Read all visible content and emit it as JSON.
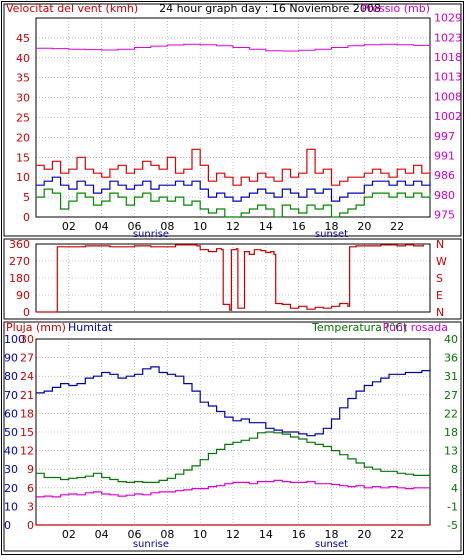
{
  "chart_data": [
    {
      "type": "line",
      "title": "24 hour graph day : 16 Noviembre 2008",
      "left_label": "Velocitat del vent (kmh)",
      "right_label": "Pressió (mb)",
      "left_ticks": [
        "0",
        "5",
        "10",
        "15",
        "20",
        "25",
        "30",
        "35",
        "40",
        "45"
      ],
      "right_ticks": [
        "975",
        "980",
        "986",
        "991",
        "997",
        "1002",
        "1008",
        "1013",
        "1018",
        "1023",
        "1029"
      ],
      "x_ticks": [
        "02",
        "04",
        "06",
        "08",
        "10",
        "12",
        "14",
        "16",
        "18",
        "20",
        "22"
      ],
      "markers": {
        "sunrise": "sunrise",
        "sunset": "sunset"
      },
      "x_range_hours": [
        0,
        24
      ],
      "left_range": [
        0,
        50
      ],
      "right_range": [
        975,
        1031
      ],
      "grid": true,
      "colors": {
        "gust": "#dd0000",
        "average": "#0000bb",
        "minimum": "#008800",
        "pressure": "#dd00dd",
        "axis_left": "#cc0000",
        "axis_right": "#cc00cc"
      },
      "series": [
        {
          "color_key": "gust",
          "hours": [
            0,
            0.5,
            1,
            1.5,
            2,
            2.5,
            3,
            3.5,
            4,
            4.5,
            5,
            5.5,
            6,
            6.5,
            7,
            7.5,
            8,
            8.5,
            9,
            9.5,
            10,
            10.5,
            11,
            11.5,
            12,
            12.5,
            13,
            13.5,
            14,
            14.5,
            15,
            15.5,
            16,
            16.5,
            17,
            17.5,
            18,
            18.5,
            19,
            19.5,
            20,
            20.5,
            21,
            21.5,
            22,
            22.5,
            23,
            23.5,
            24
          ],
          "values": [
            13,
            12,
            14,
            11,
            12,
            15,
            12,
            11,
            10,
            12,
            13,
            11,
            12,
            14,
            13,
            12,
            15,
            11,
            12,
            17,
            13,
            9,
            11,
            10,
            8,
            10,
            9,
            11,
            10,
            9,
            12,
            10,
            11,
            17,
            11,
            12,
            8,
            9,
            10,
            10,
            11,
            12,
            11,
            10,
            12,
            11,
            13,
            11,
            12
          ]
        },
        {
          "color_key": "average",
          "hours": [
            0,
            0.5,
            1,
            1.5,
            2,
            2.5,
            3,
            3.5,
            4,
            4.5,
            5,
            5.5,
            6,
            6.5,
            7,
            7.5,
            8,
            8.5,
            9,
            9.5,
            10,
            10.5,
            11,
            11.5,
            12,
            12.5,
            13,
            13.5,
            14,
            14.5,
            15,
            15.5,
            16,
            16.5,
            17,
            17.5,
            18,
            18.5,
            19,
            19.5,
            20,
            20.5,
            21,
            21.5,
            22,
            22.5,
            23,
            23.5,
            24
          ],
          "values": [
            8,
            9,
            10,
            8,
            7,
            9,
            8,
            6,
            7,
            9,
            8,
            7,
            8,
            9,
            7,
            8,
            8,
            9,
            8,
            9,
            7,
            5,
            6,
            5,
            4,
            5,
            6,
            7,
            6,
            5,
            7,
            6,
            5,
            7,
            6,
            7,
            4,
            5,
            6,
            6,
            8,
            9,
            9,
            8,
            9,
            8,
            9,
            8,
            9
          ]
        },
        {
          "color_key": "minimum",
          "hours": [
            0,
            0.5,
            1,
            1.5,
            2,
            2.5,
            3,
            3.5,
            4,
            4.5,
            5,
            5.5,
            6,
            6.5,
            7,
            7.5,
            8,
            8.5,
            9,
            9.5,
            10,
            10.5,
            11,
            11.5,
            12,
            12.5,
            13,
            13.5,
            14,
            14.5,
            15,
            15.5,
            16,
            16.5,
            17,
            17.5,
            18,
            18.5,
            19,
            19.5,
            20,
            20.5,
            21,
            21.5,
            22,
            22.5,
            23,
            23.5,
            24
          ],
          "values": [
            5,
            7,
            6,
            2,
            4,
            6,
            5,
            3,
            4,
            6,
            5,
            3,
            5,
            6,
            4,
            5,
            4,
            5,
            3,
            4,
            2,
            1,
            2,
            0,
            0,
            1,
            2,
            3,
            2,
            0,
            3,
            2,
            1,
            3,
            2,
            3,
            0,
            1,
            2,
            3,
            5,
            6,
            6,
            5,
            6,
            5,
            6,
            5,
            6
          ]
        },
        {
          "color_key": "pressure",
          "hours": [
            0,
            1,
            2,
            3,
            4,
            5,
            6,
            7,
            8,
            9,
            10,
            11,
            12,
            13,
            14,
            15,
            16,
            17,
            18,
            19,
            20,
            21,
            22,
            23,
            24
          ],
          "values": [
            1022.5,
            1022.4,
            1022.2,
            1022.1,
            1022,
            1022.2,
            1022.7,
            1023.1,
            1023.4,
            1023.6,
            1023.5,
            1023.2,
            1022.7,
            1022.2,
            1021.8,
            1021.7,
            1021.9,
            1022.2,
            1022.7,
            1023.2,
            1023.5,
            1023.6,
            1023.5,
            1023.3,
            1023.2
          ]
        }
      ]
    },
    {
      "type": "line",
      "left_ticks": [
        "0",
        "90",
        "180",
        "270",
        "360"
      ],
      "right_ticks": [
        "N",
        "E",
        "S",
        "W",
        "N"
      ],
      "x_range_hours": [
        0,
        24
      ],
      "left_range": [
        0,
        360
      ],
      "grid": true,
      "colors": {
        "direction": "#cc0000"
      },
      "series": [
        {
          "color_key": "direction",
          "hours": [
            0,
            1.2,
            1.3,
            3,
            4.5,
            6,
            7,
            8.5,
            9.8,
            10,
            10.5,
            11,
            11.3,
            11.4,
            11.8,
            11.9,
            12.2,
            12.3,
            12.7,
            13,
            13.3,
            13.7,
            14,
            14.3,
            14.5,
            14.6,
            15,
            15.5,
            16,
            16.5,
            17,
            17.5,
            18,
            18.5,
            19,
            19.1,
            19.5,
            20,
            21,
            22,
            22.5,
            23,
            23.6
          ],
          "values": [
            0,
            0,
            345,
            350,
            345,
            350,
            345,
            355,
            350,
            330,
            320,
            335,
            330,
            40,
            10,
            330,
            335,
            20,
            320,
            305,
            330,
            325,
            315,
            320,
            305,
            45,
            40,
            20,
            30,
            15,
            25,
            20,
            30,
            45,
            30,
            345,
            350,
            350,
            355,
            350,
            355,
            350,
            355
          ]
        }
      ]
    },
    {
      "type": "line",
      "left_labels": [
        "Pluja (mm)",
        "Humitat"
      ],
      "right_labels": [
        "Temperatura (°C)",
        "Punt rosada"
      ],
      "rain_ticks": [
        "0",
        "3",
        "6",
        "9",
        "12",
        "15",
        "18",
        "21",
        "24",
        "27",
        "30"
      ],
      "humidity_ticks": [
        "0",
        "10",
        "20",
        "30",
        "40",
        "50",
        "60",
        "70",
        "80",
        "90",
        "100"
      ],
      "temperature_ticks": [
        "-5",
        "-1",
        "4",
        "8",
        "13",
        "18",
        "22",
        "27",
        "31",
        "36",
        "40"
      ],
      "x_ticks": [
        "02",
        "04",
        "06",
        "08",
        "10",
        "12",
        "14",
        "16",
        "18",
        "20",
        "22"
      ],
      "markers": {
        "sunrise": "sunrise",
        "sunset": "sunset"
      },
      "x_range_hours": [
        0,
        24
      ],
      "grid": true,
      "colors": {
        "rain": "#cc0000",
        "humidity": "#0000aa",
        "temperature": "#007700",
        "dew_point": "#dd00dd"
      },
      "series": [
        {
          "color_key": "rain",
          "hours": [
            0,
            24
          ],
          "values": [
            0,
            0
          ]
        },
        {
          "color_key": "humidity",
          "hours": [
            0,
            0.5,
            1,
            1.5,
            2,
            2.5,
            3,
            3.5,
            4,
            4.5,
            5,
            5.5,
            6,
            6.5,
            7,
            7.5,
            8,
            8.5,
            9,
            9.5,
            10,
            10.5,
            11,
            11.5,
            12,
            12.5,
            13,
            13.5,
            14,
            14.5,
            15,
            15.5,
            16,
            16.5,
            17,
            17.5,
            18,
            18.5,
            19,
            19.5,
            20,
            20.5,
            21,
            21.5,
            22,
            22.5,
            23,
            23.5,
            24
          ],
          "values": [
            71,
            72,
            74,
            76,
            75,
            76,
            79,
            80,
            82,
            81,
            79,
            80,
            81,
            84,
            85,
            82,
            81,
            80,
            76,
            72,
            66,
            64,
            61,
            58,
            56,
            57,
            55,
            55,
            52,
            51,
            50,
            50,
            49,
            48,
            49,
            52,
            57,
            63,
            68,
            72,
            75,
            77,
            79,
            81,
            81,
            82,
            82,
            83,
            84
          ]
        },
        {
          "color_key": "temperature",
          "hours": [
            0,
            0.5,
            1,
            1.5,
            2,
            2.5,
            3,
            3.5,
            4,
            4.5,
            5,
            5.5,
            6,
            6.5,
            7,
            7.5,
            8,
            8.5,
            9,
            9.5,
            10,
            10.5,
            11,
            11.5,
            12,
            12.5,
            13,
            13.5,
            14,
            14.5,
            15,
            15.5,
            16,
            16.5,
            17,
            17.5,
            18,
            18.5,
            19,
            19.5,
            20,
            20.5,
            21,
            21.5,
            22,
            22.5,
            23,
            23.5,
            24
          ],
          "values": [
            7.5,
            6.5,
            6.5,
            6,
            6.3,
            6.5,
            6.8,
            7.5,
            6.5,
            6,
            5.5,
            5.3,
            5.5,
            5.3,
            5.3,
            5.8,
            6.3,
            7.3,
            8.3,
            9.3,
            10.8,
            12.3,
            13.3,
            14.5,
            15,
            15.5,
            16,
            17.3,
            17.5,
            17.3,
            17,
            16.3,
            15.8,
            15,
            14.5,
            14,
            13,
            12,
            11,
            10,
            9,
            8.5,
            8,
            8,
            7.5,
            7.3,
            7,
            7,
            7
          ]
        },
        {
          "color_key": "dew_point",
          "hours": [
            0,
            0.5,
            1,
            1.5,
            2,
            2.5,
            3,
            3.5,
            4,
            4.5,
            5,
            5.5,
            6,
            6.5,
            7,
            7.5,
            8,
            8.5,
            9,
            9.5,
            10,
            10.5,
            11,
            11.5,
            12,
            12.5,
            13,
            13.5,
            14,
            14.5,
            15,
            15.5,
            16,
            16.5,
            17,
            17.5,
            18,
            18.5,
            19,
            19.5,
            20,
            20.5,
            21,
            21.5,
            22,
            22.5,
            23,
            23.5,
            24
          ],
          "values": [
            1.8,
            2,
            1.8,
            2.3,
            2.5,
            2.3,
            2.8,
            3,
            2.5,
            2.3,
            2,
            2.2,
            2.5,
            2.3,
            2.8,
            3,
            3,
            3.3,
            3.5,
            3.8,
            3.8,
            4.3,
            4.5,
            5,
            5.3,
            5.3,
            5,
            5.5,
            5.5,
            5.8,
            5.5,
            5.3,
            5.3,
            5.5,
            5,
            5,
            4.8,
            4.5,
            4.3,
            4.5,
            4,
            4.3,
            4,
            4.3,
            4,
            3.8,
            4,
            4,
            4
          ]
        }
      ]
    }
  ]
}
